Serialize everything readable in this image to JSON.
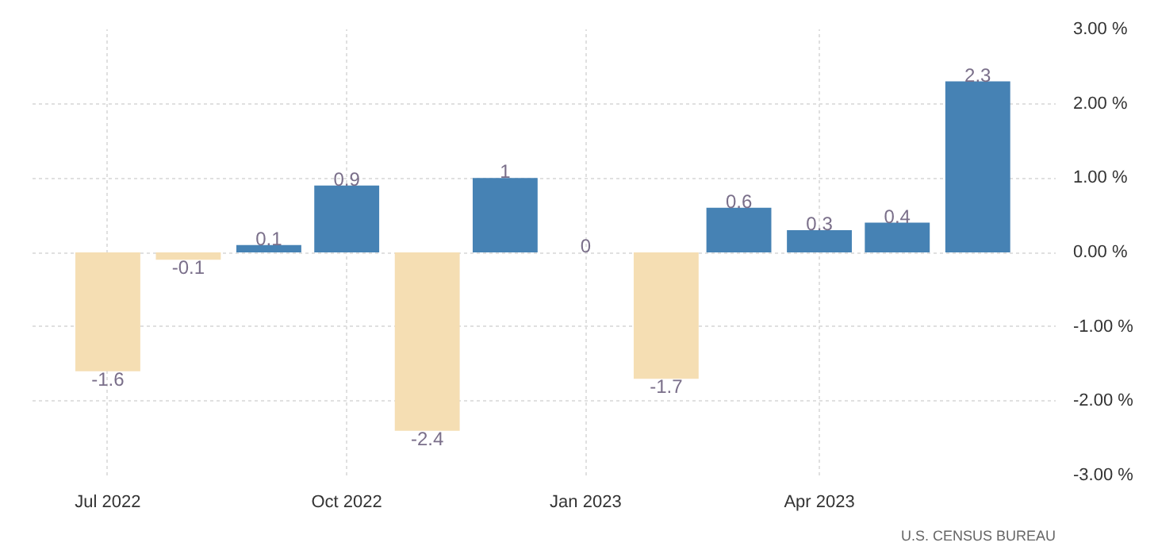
{
  "chart_data": {
    "type": "bar",
    "x": [
      "2022-07",
      "2022-08",
      "2022-09",
      "2022-10",
      "2022-11",
      "2022-12",
      "2023-01",
      "2023-02",
      "2023-03",
      "2023-04",
      "2023-05",
      "2023-06"
    ],
    "values": [
      -1.6,
      -0.1,
      0.1,
      0.9,
      -2.4,
      1,
      0,
      -1.7,
      0.6,
      0.3,
      0.4,
      2.3
    ],
    "colors": [
      "#f5deb3",
      "#f5deb3",
      "#4682b4",
      "#4682b4",
      "#f5deb3",
      "#4682b4",
      "#4682b4",
      "#f5deb3",
      "#4682b4",
      "#4682b4",
      "#4682b4",
      "#4682b4"
    ],
    "data_labels": true,
    "xlim": [
      "2022-06-02",
      "2023-07-01"
    ],
    "xticks": [
      {
        "value": "2022-07",
        "label": "Jul 2022"
      },
      {
        "value": "2022-10",
        "label": "Oct 2022"
      },
      {
        "value": "2023-01",
        "label": "Jan 2023"
      },
      {
        "value": "2023-04",
        "label": "Apr 2023"
      }
    ],
    "ylim": [
      -3,
      3
    ],
    "yticks": [
      {
        "value": 3,
        "label": "3.00 %"
      },
      {
        "value": 2,
        "label": "2.00 %"
      },
      {
        "value": 1,
        "label": "1.00 %"
      },
      {
        "value": 0,
        "label": "0.00 %"
      },
      {
        "value": -1,
        "label": "-1.00 %"
      },
      {
        "value": -2,
        "label": "-2.00 %"
      },
      {
        "value": -3,
        "label": "-3.00 %"
      }
    ],
    "grid": true,
    "annotations": [
      "U.S. CENSUS BUREAU"
    ]
  }
}
